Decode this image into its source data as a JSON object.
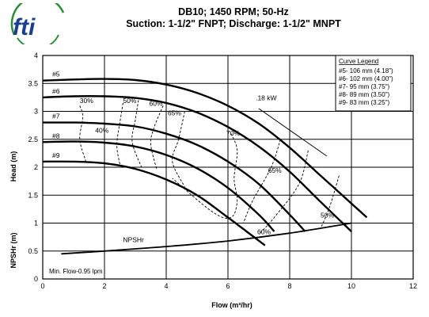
{
  "brand": {
    "logo_text": "fti",
    "logo_color": "#1a3f8f",
    "logo_accent": "#2e8b3a"
  },
  "chart_data": {
    "type": "line",
    "title": "DB10; 1450 RPM; 50-Hz",
    "subtitle": "Suction: 1-1/2\" FNPT; Discharge: 1-1/2\" MNPT",
    "xlabel": "Flow (m³/hr)",
    "ylabel": "Head (m)",
    "y2label": "NPSHr (m)",
    "xlim": [
      0,
      12
    ],
    "ylim": [
      0,
      4
    ],
    "x_ticks": [
      "0",
      "2",
      "4",
      "6",
      "8",
      "10",
      "12"
    ],
    "y_ticks": [
      "0",
      "0.5",
      "1",
      "1.5",
      "2",
      "2.5",
      "3",
      "3.5",
      "4"
    ],
    "grid": true,
    "legend": {
      "title": "Curve Legend",
      "placement": "top-right",
      "entries": [
        "#5- 106 mm (4.18\")",
        "#6- 102 mm (4.00\")",
        "#7- 95 mm (3.75\")",
        "#8- 89 mm (3.50\")",
        "#9- 83 mm (3.25\")"
      ]
    },
    "series": [
      {
        "name": "#5",
        "x": [
          0,
          1,
          2,
          3,
          4,
          5,
          6,
          7,
          8,
          9,
          10,
          10.5
        ],
        "y": [
          3.55,
          3.57,
          3.58,
          3.56,
          3.48,
          3.33,
          3.1,
          2.78,
          2.35,
          1.85,
          1.35,
          1.1
        ]
      },
      {
        "name": "#6",
        "x": [
          0,
          1,
          2,
          3,
          4,
          5,
          6,
          7,
          8,
          9,
          10
        ],
        "y": [
          3.25,
          3.27,
          3.27,
          3.24,
          3.15,
          2.98,
          2.72,
          2.37,
          1.92,
          1.38,
          0.85
        ]
      },
      {
        "name": "#7",
        "x": [
          0,
          1,
          2,
          3,
          4,
          5,
          6,
          7,
          8,
          8.5
        ],
        "y": [
          2.8,
          2.8,
          2.78,
          2.73,
          2.6,
          2.4,
          2.1,
          1.7,
          1.15,
          0.85
        ]
      },
      {
        "name": "#8",
        "x": [
          0,
          1,
          2,
          3,
          4,
          5,
          6,
          7,
          7.5
        ],
        "y": [
          2.45,
          2.46,
          2.44,
          2.37,
          2.22,
          1.98,
          1.63,
          1.15,
          0.85
        ]
      },
      {
        "name": "#9",
        "x": [
          0,
          1,
          2,
          3,
          4,
          5,
          6,
          7.2
        ],
        "y": [
          2.1,
          2.1,
          2.07,
          1.97,
          1.78,
          1.5,
          1.1,
          0.6
        ]
      }
    ],
    "npshr": {
      "name": "NPSHr",
      "x": [
        0.6,
        2,
        4,
        6,
        8,
        10
      ],
      "y": [
        0.45,
        0.5,
        0.58,
        0.68,
        0.82,
        1.0
      ]
    },
    "power_line": {
      "label": ".18 kW",
      "x": [
        7,
        9.2
      ],
      "y": [
        3.05,
        2.2
      ]
    },
    "efficiency_labels": [
      "30%",
      "50%",
      "60%",
      "65%",
      "40%",
      "70%",
      "65%",
      "60%",
      "50%"
    ],
    "annotation": "Min. Flow-0.95 lpm"
  }
}
